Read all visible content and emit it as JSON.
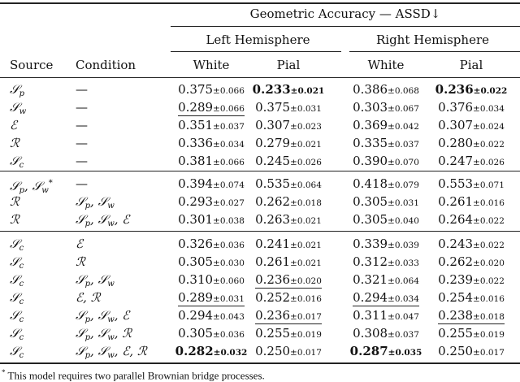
{
  "header": {
    "group": "Geometric Accuracy — ASSD↓",
    "left": "Left Hemisphere",
    "right": "Right Hemisphere",
    "source": "Source",
    "condition": "Condition",
    "white": "White",
    "pial": "Pial"
  },
  "groups": [
    [
      {
        "source": "𝒮_p",
        "condition": "—",
        "cells": [
          {
            "v": "0.375",
            "sd": "±0.066"
          },
          {
            "v": "0.233",
            "sd": "±0.021",
            "bold": true
          },
          {
            "v": "0.386",
            "sd": "±0.068"
          },
          {
            "v": "0.236",
            "sd": "±0.022",
            "bold": true
          }
        ]
      },
      {
        "source": "𝒮_w",
        "condition": "—",
        "cells": [
          {
            "v": "0.289",
            "sd": "±0.066",
            "underline": true
          },
          {
            "v": "0.375",
            "sd": "±0.031"
          },
          {
            "v": "0.303",
            "sd": "±0.067"
          },
          {
            "v": "0.376",
            "sd": "±0.034"
          }
        ]
      },
      {
        "source": "ℰ",
        "condition": "—",
        "cells": [
          {
            "v": "0.351",
            "sd": "±0.037"
          },
          {
            "v": "0.307",
            "sd": "±0.023"
          },
          {
            "v": "0.369",
            "sd": "±0.042"
          },
          {
            "v": "0.307",
            "sd": "±0.024"
          }
        ]
      },
      {
        "source": "ℛ",
        "condition": "—",
        "cells": [
          {
            "v": "0.336",
            "sd": "±0.034"
          },
          {
            "v": "0.279",
            "sd": "±0.021"
          },
          {
            "v": "0.335",
            "sd": "±0.037"
          },
          {
            "v": "0.280",
            "sd": "±0.022"
          }
        ]
      },
      {
        "source": "𝒮_c",
        "condition": "—",
        "cells": [
          {
            "v": "0.381",
            "sd": "±0.066"
          },
          {
            "v": "0.245",
            "sd": "±0.026"
          },
          {
            "v": "0.390",
            "sd": "±0.070"
          },
          {
            "v": "0.247",
            "sd": "±0.026"
          }
        ]
      }
    ],
    [
      {
        "source": "𝒮_p, 𝒮_w*",
        "condition": "—",
        "cells": [
          {
            "v": "0.394",
            "sd": "±0.074"
          },
          {
            "v": "0.535",
            "sd": "±0.064"
          },
          {
            "v": "0.418",
            "sd": "±0.079"
          },
          {
            "v": "0.553",
            "sd": "±0.071"
          }
        ]
      },
      {
        "source": "ℛ",
        "condition": "𝒮_p, 𝒮_w",
        "cells": [
          {
            "v": "0.293",
            "sd": "±0.027"
          },
          {
            "v": "0.262",
            "sd": "±0.018"
          },
          {
            "v": "0.305",
            "sd": "±0.031"
          },
          {
            "v": "0.261",
            "sd": "±0.016"
          }
        ]
      },
      {
        "source": "ℛ",
        "condition": "𝒮_p, 𝒮_w, ℰ",
        "cells": [
          {
            "v": "0.301",
            "sd": "±0.038"
          },
          {
            "v": "0.263",
            "sd": "±0.021"
          },
          {
            "v": "0.305",
            "sd": "±0.040"
          },
          {
            "v": "0.264",
            "sd": "±0.022"
          }
        ]
      }
    ],
    [
      {
        "source": "𝒮_c",
        "condition": "ℰ",
        "cells": [
          {
            "v": "0.326",
            "sd": "±0.036"
          },
          {
            "v": "0.241",
            "sd": "±0.021"
          },
          {
            "v": "0.339",
            "sd": "±0.039"
          },
          {
            "v": "0.243",
            "sd": "±0.022"
          }
        ]
      },
      {
        "source": "𝒮_c",
        "condition": "ℛ",
        "cells": [
          {
            "v": "0.305",
            "sd": "±0.030"
          },
          {
            "v": "0.261",
            "sd": "±0.021"
          },
          {
            "v": "0.312",
            "sd": "±0.033"
          },
          {
            "v": "0.262",
            "sd": "±0.020"
          }
        ]
      },
      {
        "source": "𝒮_c",
        "condition": "𝒮_p, 𝒮_w",
        "cells": [
          {
            "v": "0.310",
            "sd": "±0.060"
          },
          {
            "v": "0.236",
            "sd": "±0.020",
            "underline": true
          },
          {
            "v": "0.321",
            "sd": "±0.064"
          },
          {
            "v": "0.239",
            "sd": "±0.022"
          }
        ]
      },
      {
        "source": "𝒮_c",
        "condition": "ℰ, ℛ",
        "cells": [
          {
            "v": "0.289",
            "sd": "±0.031",
            "underline": true
          },
          {
            "v": "0.252",
            "sd": "±0.016"
          },
          {
            "v": "0.294",
            "sd": "±0.034",
            "underline": true
          },
          {
            "v": "0.254",
            "sd": "±0.016"
          }
        ]
      },
      {
        "source": "𝒮_c",
        "condition": "𝒮_p, 𝒮_w, ℰ",
        "cells": [
          {
            "v": "0.294",
            "sd": "±0.043"
          },
          {
            "v": "0.236",
            "sd": "±0.017",
            "underline": true
          },
          {
            "v": "0.311",
            "sd": "±0.047"
          },
          {
            "v": "0.238",
            "sd": "±0.018",
            "underline": true
          }
        ]
      },
      {
        "source": "𝒮_c",
        "condition": "𝒮_p, 𝒮_w, ℛ",
        "cells": [
          {
            "v": "0.305",
            "sd": "±0.036"
          },
          {
            "v": "0.255",
            "sd": "±0.019"
          },
          {
            "v": "0.308",
            "sd": "±0.037"
          },
          {
            "v": "0.255",
            "sd": "±0.019"
          }
        ]
      },
      {
        "source": "𝒮_c",
        "condition": "𝒮_p, 𝒮_w, ℰ, ℛ",
        "cells": [
          {
            "v": "0.282",
            "sd": "±0.032",
            "bold": true
          },
          {
            "v": "0.250",
            "sd": "±0.017"
          },
          {
            "v": "0.287",
            "sd": "±0.035",
            "bold": true
          },
          {
            "v": "0.250",
            "sd": "±0.017"
          }
        ]
      }
    ]
  ],
  "footnote": {
    "mark": "*",
    "text": "This model requires two parallel Brownian bridge processes."
  }
}
